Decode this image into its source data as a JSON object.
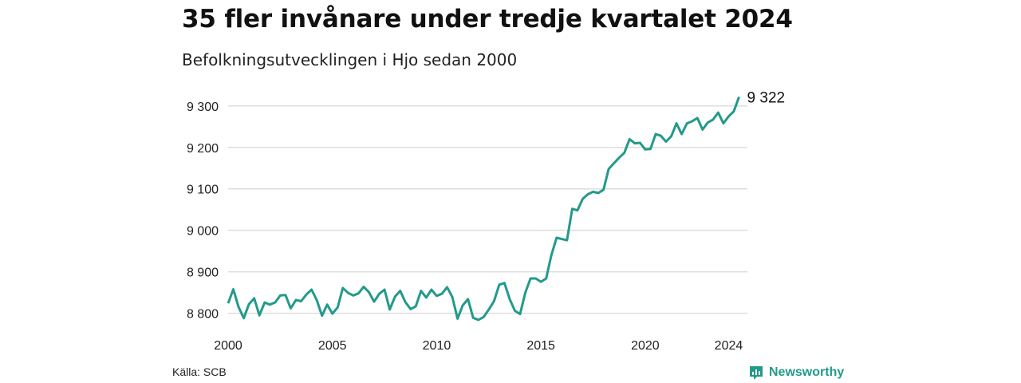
{
  "header": {
    "title": "35 fler invånare under tredje kvartalet 2024",
    "subtitle": "Befolkningsutvecklingen i Hjo sedan 2000"
  },
  "footer": {
    "source": "Källa: SCB",
    "brand": "Newsworthy",
    "brand_icon": "newsworthy-logo-icon"
  },
  "colors": {
    "line": "#239a8a",
    "grid": "#dddddd"
  },
  "chart_data": {
    "type": "line",
    "title": "35 fler invånare under tredje kvartalet 2024",
    "subtitle": "Befolkningsutvecklingen i Hjo sedan 2000",
    "xlabel": "",
    "ylabel": "",
    "grid": true,
    "ylim": [
      8780,
      9340
    ],
    "xlim": [
      2000,
      2024.9
    ],
    "x_ticks": [
      2000,
      2005,
      2010,
      2015,
      2020,
      2024
    ],
    "x_tick_labels": [
      "2000",
      "2005",
      "2010",
      "2015",
      "2020",
      "2024"
    ],
    "y_ticks": [
      8800,
      8900,
      9000,
      9100,
      9200,
      9300
    ],
    "y_tick_labels": [
      "8 800",
      "8 900",
      "9 000",
      "9 100",
      "9 200",
      "9 300"
    ],
    "end_label": "9 322",
    "series": [
      {
        "x": [
          2000.0,
          2000.25,
          2000.5,
          2000.75,
          2001.0,
          2001.25,
          2001.5,
          2001.75,
          2002.0,
          2002.25,
          2002.5,
          2002.75,
          2003.0,
          2003.25,
          2003.5,
          2003.75,
          2004.0,
          2004.25,
          2004.5,
          2004.75,
          2005.0,
          2005.25,
          2005.5,
          2005.75,
          2006.0,
          2006.25,
          2006.5,
          2006.75,
          2007.0,
          2007.25,
          2007.5,
          2007.75,
          2008.0,
          2008.25,
          2008.5,
          2008.75,
          2009.0,
          2009.25,
          2009.5,
          2009.75,
          2010.0,
          2010.25,
          2010.5,
          2010.75,
          2011.0,
          2011.25,
          2011.5,
          2011.75,
          2012.0,
          2012.25,
          2012.5,
          2012.75,
          2013.0,
          2013.25,
          2013.5,
          2013.75,
          2014.0,
          2014.25,
          2014.5,
          2014.75,
          2015.0,
          2015.25,
          2015.5,
          2015.75,
          2016.0,
          2016.25,
          2016.5,
          2016.75,
          2017.0,
          2017.25,
          2017.5,
          2017.75,
          2018.0,
          2018.25,
          2018.5,
          2018.75,
          2019.0,
          2019.25,
          2019.5,
          2019.75,
          2020.0,
          2020.25,
          2020.5,
          2020.75,
          2021.0,
          2021.25,
          2021.5,
          2021.75,
          2022.0,
          2022.25,
          2022.5,
          2022.75,
          2023.0,
          2023.25,
          2023.5,
          2023.75,
          2024.0,
          2024.25,
          2024.5
        ],
        "values": [
          8824,
          8858,
          8815,
          8788,
          8822,
          8836,
          8795,
          8826,
          8821,
          8826,
          8843,
          8844,
          8812,
          8832,
          8829,
          8845,
          8857,
          8832,
          8794,
          8821,
          8799,
          8814,
          8861,
          8849,
          8843,
          8848,
          8864,
          8851,
          8828,
          8847,
          8857,
          8809,
          8840,
          8854,
          8827,
          8810,
          8817,
          8854,
          8838,
          8857,
          8842,
          8847,
          8863,
          8839,
          8787,
          8819,
          8834,
          8789,
          8784,
          8791,
          8809,
          8829,
          8869,
          8873,
          8834,
          8806,
          8798,
          8850,
          8884,
          8884,
          8876,
          8884,
          8940,
          8982,
          8979,
          8976,
          9052,
          9048,
          9076,
          9087,
          9093,
          9090,
          9098,
          9148,
          9162,
          9175,
          9187,
          9220,
          9210,
          9211,
          9195,
          9196,
          9232,
          9228,
          9214,
          9227,
          9258,
          9232,
          9258,
          9263,
          9271,
          9243,
          9260,
          9267,
          9284,
          9258,
          9275,
          9287,
          9322
        ]
      }
    ]
  }
}
